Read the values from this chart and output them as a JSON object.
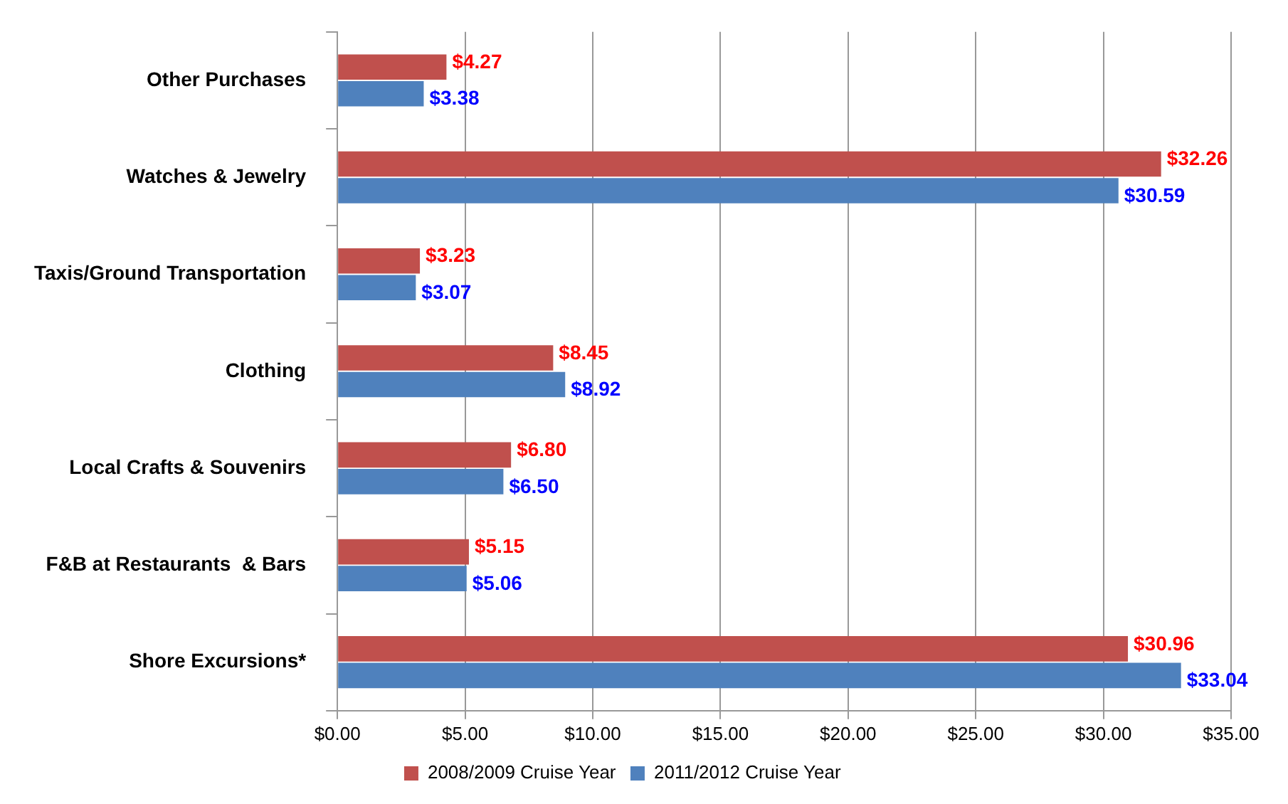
{
  "chart_data": {
    "type": "bar",
    "orientation": "horizontal",
    "categories": [
      "Other Purchases",
      "Watches & Jewelry",
      "Taxis/Ground Transportation",
      "Clothing",
      "Local Crafts & Souvenirs",
      "F&B at Restaurants  & Bars",
      "Shore Excursions*"
    ],
    "series": [
      {
        "name": "2008/2009 Cruise Year",
        "color": "#c0504d",
        "values": [
          4.27,
          32.26,
          3.23,
          8.45,
          6.8,
          5.15,
          30.96
        ],
        "value_labels": [
          "$4.27",
          "$32.26",
          "$3.23",
          "$8.45",
          "$6.80",
          "$5.15",
          "$30.96"
        ]
      },
      {
        "name": "2011/2012 Cruise Year",
        "color": "#4f81bd",
        "values": [
          3.38,
          30.59,
          3.07,
          8.92,
          6.5,
          5.06,
          33.04
        ],
        "value_labels": [
          "$3.38",
          "$30.59",
          "$3.07",
          "$8.92",
          "$6.50",
          "$5.06",
          "$33.04"
        ]
      }
    ],
    "xlim": [
      0,
      35
    ],
    "xticks": [
      {
        "value": 0,
        "label": "$0.00"
      },
      {
        "value": 5,
        "label": "$5.00"
      },
      {
        "value": 10,
        "label": "$10.00"
      },
      {
        "value": 15,
        "label": "$15.00"
      },
      {
        "value": 20,
        "label": "$20.00"
      },
      {
        "value": 25,
        "label": "$25.00"
      },
      {
        "value": 30,
        "label": "$30.00"
      },
      {
        "value": 35,
        "label": "$35.00"
      }
    ],
    "grid": "x",
    "legend": "bottom"
  }
}
